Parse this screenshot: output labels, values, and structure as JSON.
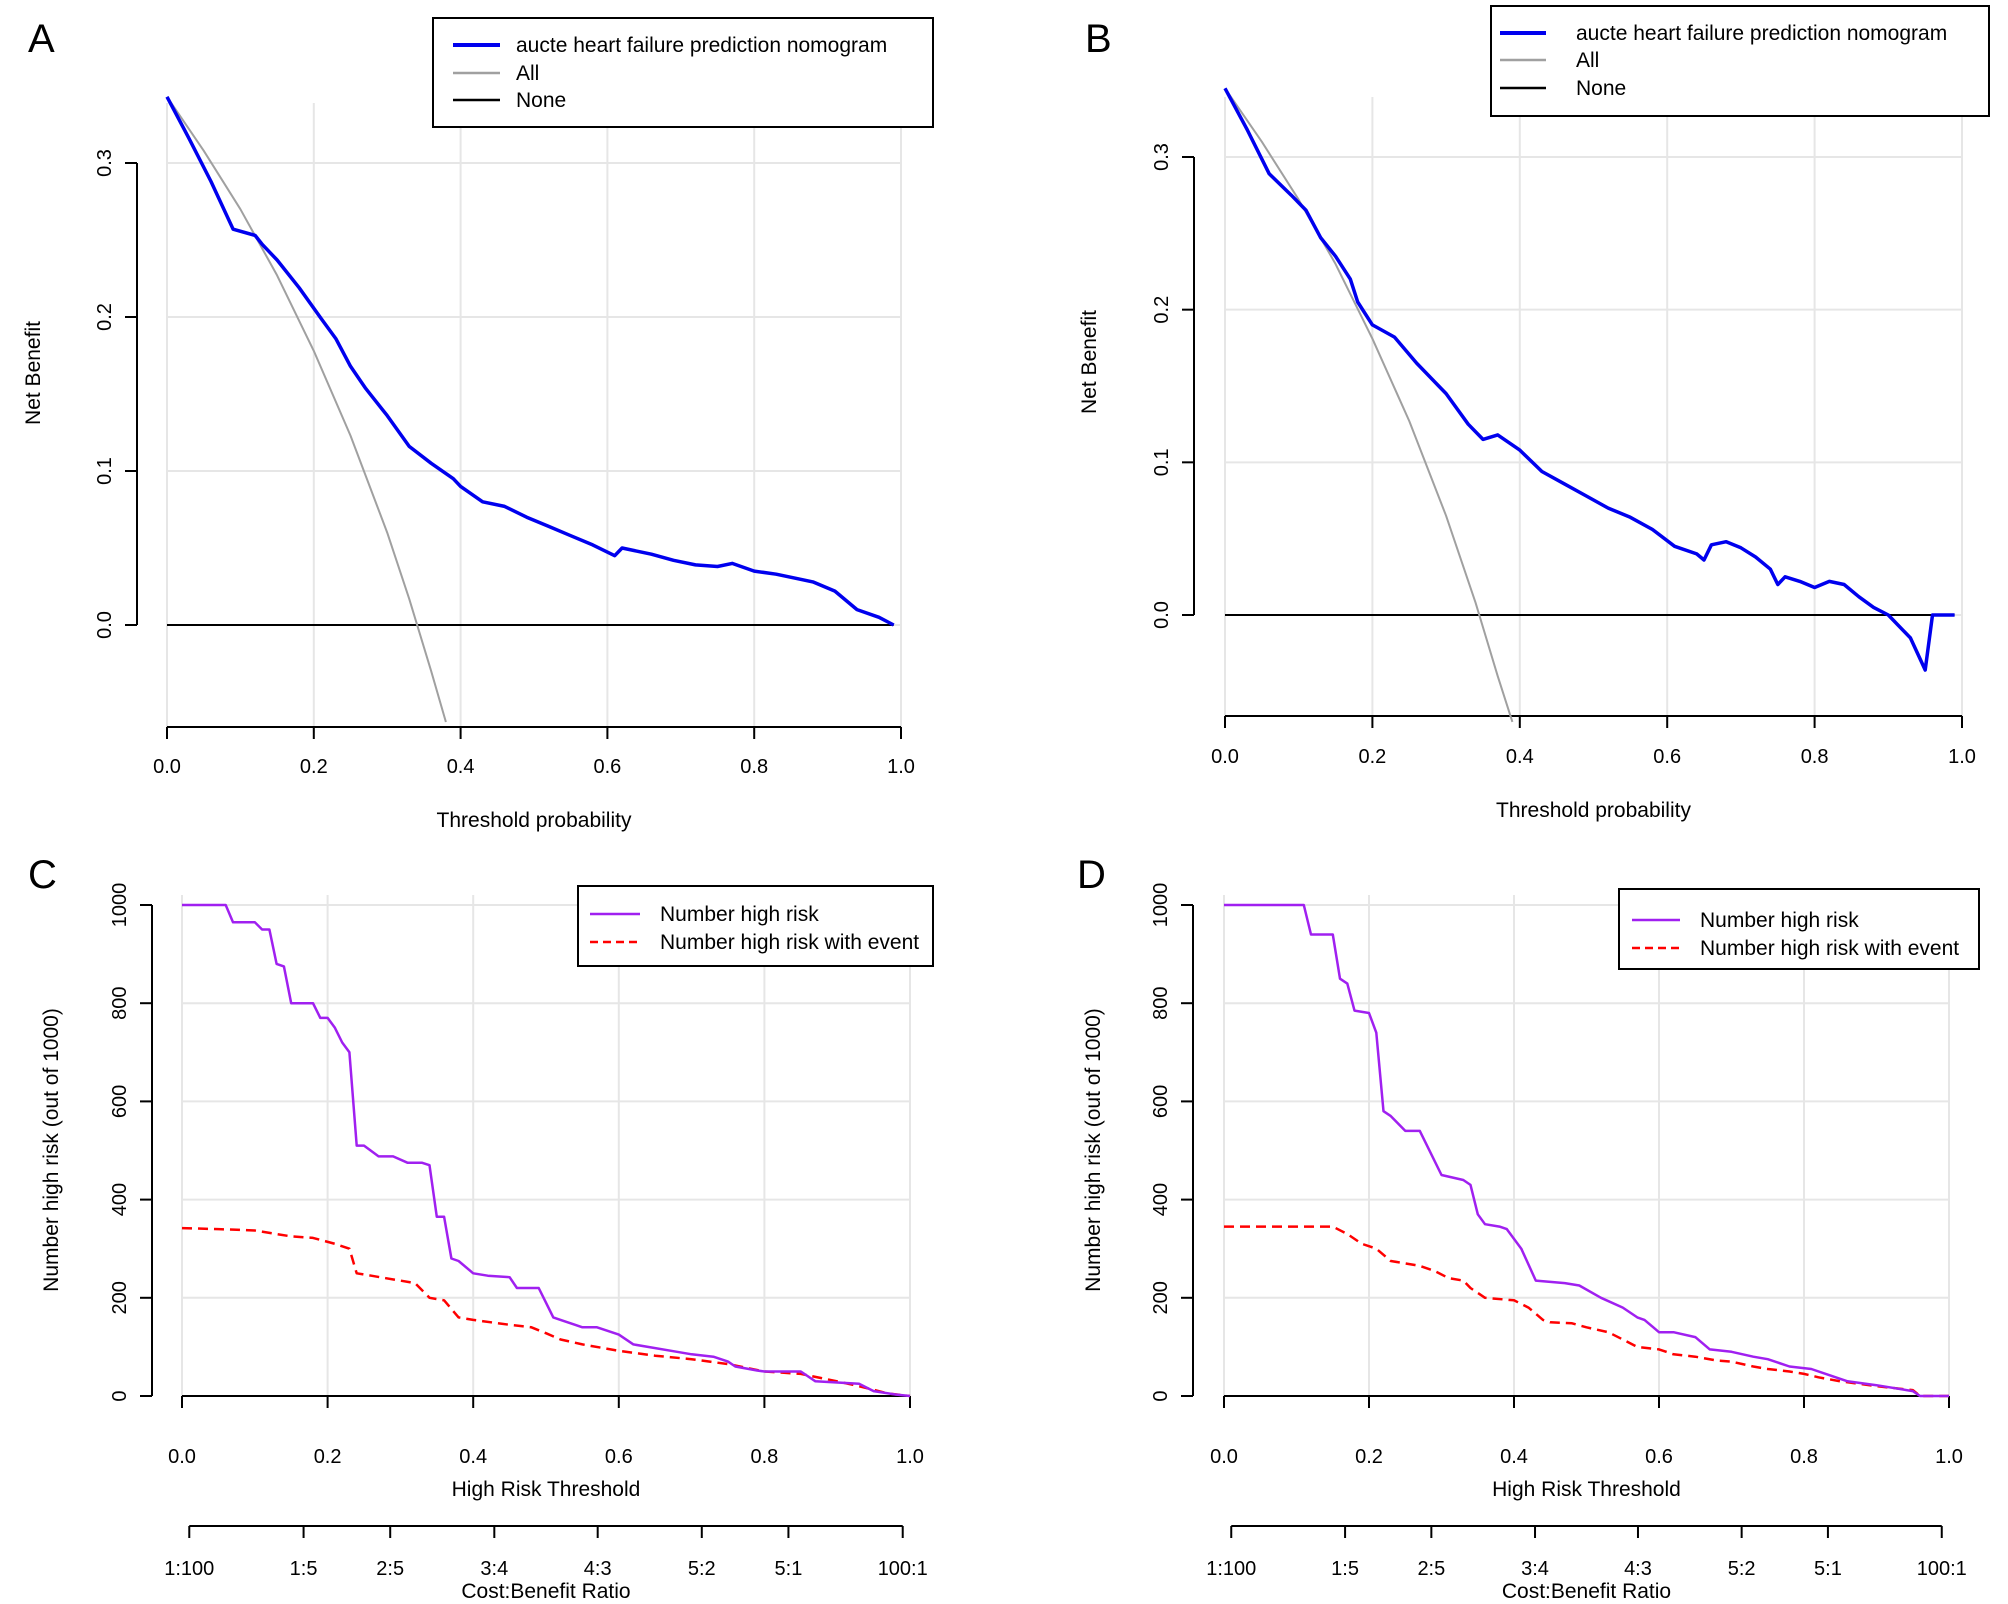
{
  "colors": {
    "model": "#0000ee",
    "all": "#a0a0a0",
    "none": "#000000",
    "highrisk": "#a020f0",
    "event": "#ff0000",
    "grid": "#e6e6e6"
  },
  "chart_data": [
    {
      "panel": "A",
      "type": "line",
      "xlabel": "Threshold probability",
      "ylabel": "Net Benefit",
      "xlim": [
        0,
        1
      ],
      "ylim": [
        -0.07,
        0.35
      ],
      "xticks": [
        "0.0",
        "0.2",
        "0.4",
        "0.6",
        "0.8",
        "1.0"
      ],
      "yticks": [
        "0.0",
        "0.1",
        "0.2",
        "0.3"
      ],
      "legend_position": "top-right",
      "series": [
        {
          "name": "aucte heart failure prediction nomogram",
          "color": "model",
          "x": [
            0.0,
            0.03,
            0.06,
            0.09,
            0.12,
            0.13,
            0.15,
            0.18,
            0.21,
            0.23,
            0.25,
            0.27,
            0.3,
            0.33,
            0.36,
            0.39,
            0.4,
            0.43,
            0.46,
            0.49,
            0.52,
            0.55,
            0.58,
            0.61,
            0.62,
            0.66,
            0.69,
            0.72,
            0.75,
            0.77,
            0.8,
            0.83,
            0.86,
            0.88,
            0.91,
            0.94,
            0.97,
            0.99
          ],
          "y": [
            0.343,
            0.316,
            0.288,
            0.257,
            0.253,
            0.247,
            0.237,
            0.219,
            0.199,
            0.186,
            0.168,
            0.154,
            0.136,
            0.116,
            0.105,
            0.095,
            0.09,
            0.08,
            0.077,
            0.07,
            0.064,
            0.058,
            0.052,
            0.045,
            0.05,
            0.046,
            0.042,
            0.039,
            0.038,
            0.04,
            0.035,
            0.033,
            0.03,
            0.028,
            0.022,
            0.01,
            0.005,
            0.0
          ]
        },
        {
          "name": "All",
          "color": "all",
          "x": [
            0.0,
            0.05,
            0.1,
            0.15,
            0.2,
            0.25,
            0.3,
            0.33,
            0.36,
            0.38
          ],
          "y": [
            0.343,
            0.308,
            0.27,
            0.227,
            0.178,
            0.123,
            0.06,
            0.017,
            -0.03,
            -0.063
          ]
        },
        {
          "name": "None",
          "color": "none",
          "x": [
            0.0,
            0.99
          ],
          "y": [
            0.0,
            0.0
          ]
        }
      ]
    },
    {
      "panel": "B",
      "type": "line",
      "xlabel": "Threshold probability",
      "ylabel": "Net Benefit",
      "xlim": [
        0,
        1
      ],
      "ylim": [
        -0.07,
        0.35
      ],
      "xticks": [
        "0.0",
        "0.2",
        "0.4",
        "0.6",
        "0.8",
        "1.0"
      ],
      "yticks": [
        "0.0",
        "0.1",
        "0.2",
        "0.3"
      ],
      "legend_position": "top-right",
      "series": [
        {
          "name": "aucte heart failure prediction nomogram",
          "color": "model",
          "x": [
            0.0,
            0.03,
            0.06,
            0.09,
            0.11,
            0.13,
            0.15,
            0.17,
            0.18,
            0.2,
            0.23,
            0.26,
            0.29,
            0.3,
            0.33,
            0.35,
            0.37,
            0.4,
            0.43,
            0.46,
            0.49,
            0.52,
            0.55,
            0.58,
            0.61,
            0.64,
            0.65,
            0.66,
            0.68,
            0.7,
            0.72,
            0.74,
            0.75,
            0.76,
            0.78,
            0.8,
            0.82,
            0.84,
            0.86,
            0.88,
            0.9,
            0.93,
            0.95,
            0.96,
            0.98,
            0.99
          ],
          "y": [
            0.345,
            0.318,
            0.289,
            0.275,
            0.265,
            0.247,
            0.235,
            0.22,
            0.205,
            0.19,
            0.182,
            0.165,
            0.15,
            0.145,
            0.125,
            0.115,
            0.118,
            0.108,
            0.094,
            0.086,
            0.078,
            0.07,
            0.064,
            0.056,
            0.045,
            0.04,
            0.036,
            0.046,
            0.048,
            0.044,
            0.038,
            0.03,
            0.02,
            0.025,
            0.022,
            0.018,
            0.022,
            0.02,
            0.012,
            0.005,
            0.0,
            -0.015,
            -0.036,
            0.0,
            0.0,
            0.0
          ]
        },
        {
          "name": "All",
          "color": "all",
          "x": [
            0.0,
            0.05,
            0.1,
            0.15,
            0.2,
            0.25,
            0.3,
            0.34,
            0.37,
            0.39
          ],
          "y": [
            0.345,
            0.31,
            0.272,
            0.23,
            0.181,
            0.127,
            0.065,
            0.008,
            -0.04,
            -0.07
          ]
        },
        {
          "name": "None",
          "color": "none",
          "x": [
            0.0,
            0.99
          ],
          "y": [
            0.0,
            0.0
          ]
        }
      ]
    },
    {
      "panel": "C",
      "type": "line",
      "xlabel": "High Risk Threshold",
      "ylabel": "Number high risk (out of 1000)",
      "x2label": "Cost:Benefit Ratio",
      "xlim": [
        0,
        1
      ],
      "ylim": [
        0,
        1000
      ],
      "xticks": [
        "0.0",
        "0.2",
        "0.4",
        "0.6",
        "0.8",
        "1.0"
      ],
      "yticks": [
        "0",
        "200",
        "400",
        "600",
        "800",
        "1000"
      ],
      "x2ticks": [
        {
          "label": "1:100",
          "value": 0.01
        },
        {
          "label": "1:5",
          "value": 0.167
        },
        {
          "label": "2:5",
          "value": 0.286
        },
        {
          "label": "3:4",
          "value": 0.429
        },
        {
          "label": "4:3",
          "value": 0.571
        },
        {
          "label": "5:2",
          "value": 0.714
        },
        {
          "label": "5:1",
          "value": 0.833
        },
        {
          "label": "100:1",
          "value": 0.99
        }
      ],
      "legend_position": "top-right",
      "series": [
        {
          "name": "Number high risk",
          "color": "highrisk",
          "dash": false,
          "x": [
            0.0,
            0.06,
            0.07,
            0.1,
            0.11,
            0.12,
            0.13,
            0.14,
            0.15,
            0.18,
            0.19,
            0.2,
            0.21,
            0.22,
            0.23,
            0.24,
            0.25,
            0.27,
            0.29,
            0.31,
            0.33,
            0.34,
            0.35,
            0.36,
            0.37,
            0.38,
            0.4,
            0.42,
            0.45,
            0.46,
            0.49,
            0.5,
            0.51,
            0.52,
            0.54,
            0.55,
            0.57,
            0.6,
            0.62,
            0.64,
            0.68,
            0.7,
            0.73,
            0.75,
            0.76,
            0.79,
            0.8,
            0.85,
            0.87,
            0.93,
            0.95,
            0.98,
            1.0
          ],
          "y": [
            1000,
            1000,
            965,
            965,
            950,
            950,
            880,
            875,
            800,
            800,
            770,
            770,
            750,
            720,
            700,
            510,
            510,
            488,
            488,
            475,
            475,
            470,
            365,
            365,
            280,
            275,
            250,
            245,
            242,
            220,
            220,
            190,
            160,
            155,
            145,
            140,
            140,
            125,
            105,
            100,
            90,
            85,
            80,
            70,
            60,
            52,
            50,
            50,
            30,
            25,
            10,
            3,
            0
          ]
        },
        {
          "name": "Number high risk with event",
          "color": "event",
          "dash": true,
          "x": [
            0.0,
            0.05,
            0.1,
            0.15,
            0.18,
            0.21,
            0.23,
            0.24,
            0.26,
            0.28,
            0.3,
            0.32,
            0.34,
            0.36,
            0.38,
            0.4,
            0.45,
            0.48,
            0.5,
            0.52,
            0.55,
            0.6,
            0.65,
            0.7,
            0.75,
            0.8,
            0.85,
            0.9,
            0.93,
            0.97,
            1.0
          ],
          "y": [
            342,
            340,
            337,
            325,
            322,
            310,
            300,
            250,
            245,
            240,
            235,
            230,
            200,
            195,
            160,
            155,
            145,
            140,
            128,
            115,
            105,
            92,
            82,
            75,
            65,
            50,
            45,
            30,
            20,
            5,
            0
          ]
        }
      ]
    },
    {
      "panel": "D",
      "type": "line",
      "xlabel": "High Risk Threshold",
      "ylabel": "Number high risk (out of 1000)",
      "x2label": "Cost:Benefit Ratio",
      "xlim": [
        0,
        1
      ],
      "ylim": [
        0,
        1000
      ],
      "xticks": [
        "0.0",
        "0.2",
        "0.4",
        "0.6",
        "0.8",
        "1.0"
      ],
      "yticks": [
        "0",
        "200",
        "400",
        "600",
        "800",
        "1000"
      ],
      "x2ticks": [
        {
          "label": "1:100",
          "value": 0.01
        },
        {
          "label": "1:5",
          "value": 0.167
        },
        {
          "label": "2:5",
          "value": 0.286
        },
        {
          "label": "3:4",
          "value": 0.429
        },
        {
          "label": "4:3",
          "value": 0.571
        },
        {
          "label": "5:2",
          "value": 0.714
        },
        {
          "label": "5:1",
          "value": 0.833
        },
        {
          "label": "100:1",
          "value": 0.99
        }
      ],
      "legend_position": "top-right",
      "series": [
        {
          "name": "Number high risk",
          "color": "highrisk",
          "dash": false,
          "x": [
            0.0,
            0.11,
            0.12,
            0.15,
            0.16,
            0.17,
            0.18,
            0.2,
            0.21,
            0.22,
            0.23,
            0.25,
            0.27,
            0.3,
            0.33,
            0.34,
            0.35,
            0.36,
            0.38,
            0.39,
            0.4,
            0.41,
            0.43,
            0.47,
            0.49,
            0.52,
            0.55,
            0.57,
            0.58,
            0.6,
            0.62,
            0.65,
            0.67,
            0.7,
            0.73,
            0.75,
            0.78,
            0.81,
            0.83,
            0.86,
            0.9,
            0.95,
            0.96,
            1.0
          ],
          "y": [
            1000,
            1000,
            940,
            940,
            850,
            840,
            785,
            780,
            740,
            580,
            570,
            540,
            540,
            450,
            440,
            430,
            370,
            350,
            345,
            340,
            320,
            300,
            235,
            230,
            225,
            200,
            180,
            160,
            155,
            130,
            130,
            120,
            95,
            90,
            80,
            75,
            60,
            55,
            45,
            30,
            22,
            10,
            0,
            0
          ]
        },
        {
          "name": "Number high risk with event",
          "color": "event",
          "dash": true,
          "x": [
            0.0,
            0.05,
            0.1,
            0.15,
            0.17,
            0.19,
            0.2,
            0.21,
            0.23,
            0.25,
            0.27,
            0.29,
            0.31,
            0.33,
            0.34,
            0.36,
            0.4,
            0.42,
            0.44,
            0.45,
            0.48,
            0.5,
            0.53,
            0.55,
            0.57,
            0.6,
            0.62,
            0.65,
            0.68,
            0.7,
            0.73,
            0.75,
            0.78,
            0.8,
            0.82,
            0.85,
            0.9,
            0.95,
            0.96,
            1.0
          ],
          "y": [
            345,
            345,
            345,
            345,
            330,
            310,
            305,
            300,
            275,
            270,
            265,
            255,
            240,
            235,
            220,
            200,
            195,
            180,
            155,
            150,
            148,
            140,
            130,
            115,
            100,
            95,
            85,
            80,
            72,
            70,
            60,
            55,
            50,
            45,
            38,
            30,
            20,
            12,
            0,
            0
          ]
        }
      ]
    }
  ]
}
